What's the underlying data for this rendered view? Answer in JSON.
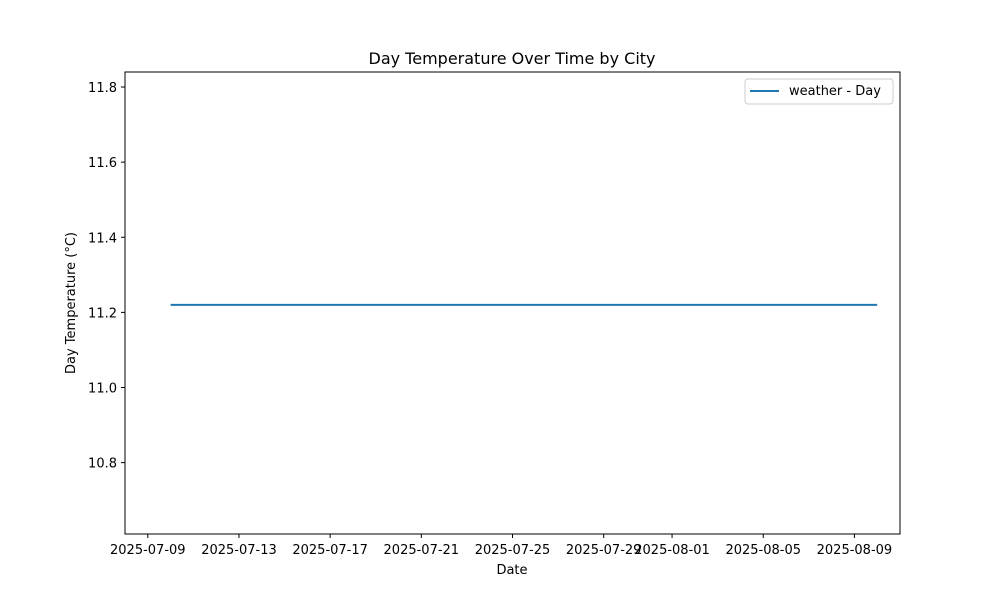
{
  "chart_data": {
    "type": "line",
    "title": "Day Temperature Over Time by City",
    "xlabel": "Date",
    "ylabel": "Day Temperature (°C)",
    "x_ticks": [
      "2025-07-09",
      "2025-07-13",
      "2025-07-17",
      "2025-07-21",
      "2025-07-25",
      "2025-07-29",
      "2025-08-01",
      "2025-08-05",
      "2025-08-09"
    ],
    "y_ticks": [
      "10.8",
      "11.0",
      "11.2",
      "11.4",
      "11.6",
      "11.8"
    ],
    "xlim": [
      "2025-07-08",
      "2025-08-11"
    ],
    "ylim": [
      10.61,
      11.84
    ],
    "grid": false,
    "legend": {
      "position": "top-right"
    },
    "series": [
      {
        "name": "weather - Day",
        "color": "#1f77b4",
        "x": [
          "2025-07-10",
          "2025-08-10"
        ],
        "y": [
          11.22,
          11.22
        ]
      }
    ]
  }
}
